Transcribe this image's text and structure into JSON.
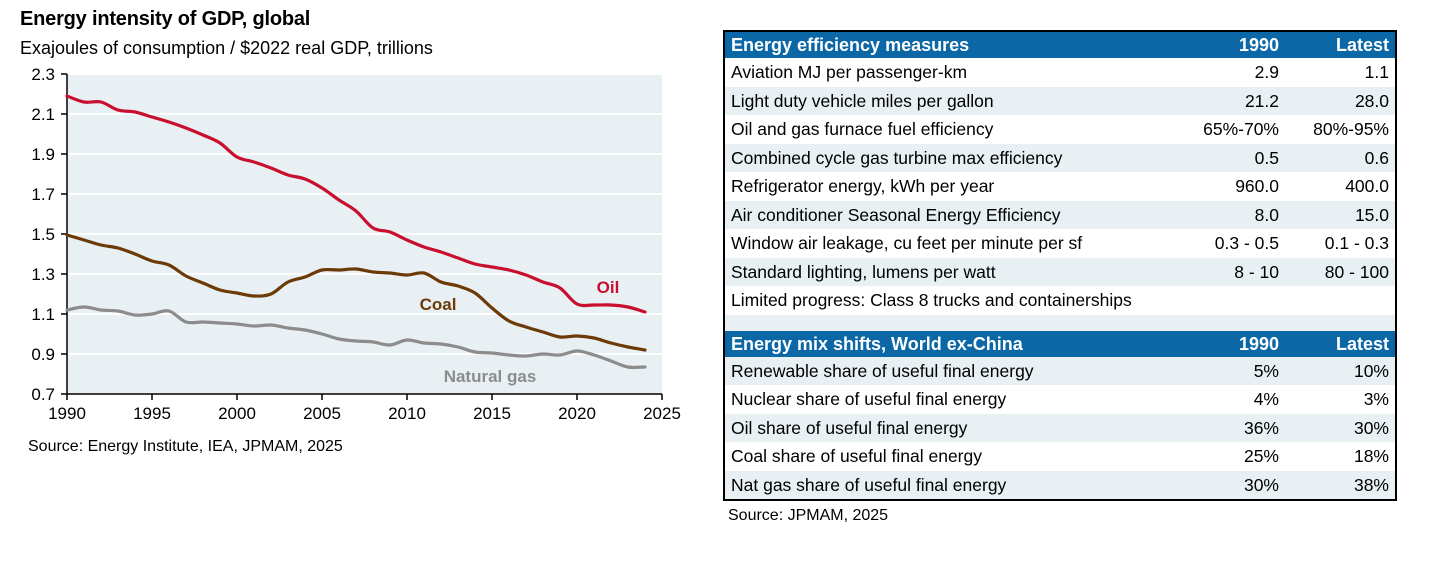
{
  "chart_data": {
    "type": "line",
    "title": "Energy intensity of GDP, global",
    "subtitle": "Exajoules of consumption / $2022 real GDP, trillions",
    "xlabel": "",
    "ylabel": "",
    "xlim": [
      1990,
      2025
    ],
    "ylim": [
      0.7,
      2.3
    ],
    "xticks": [
      1990,
      1995,
      2000,
      2005,
      2010,
      2015,
      2020,
      2025
    ],
    "yticks": [
      0.7,
      0.9,
      1.1,
      1.3,
      1.5,
      1.7,
      1.9,
      2.1,
      2.3
    ],
    "grid": true,
    "legend": "inline labels",
    "x": [
      1990,
      1991,
      1992,
      1993,
      1994,
      1995,
      1996,
      1997,
      1998,
      1999,
      2000,
      2001,
      2002,
      2003,
      2004,
      2005,
      2006,
      2007,
      2008,
      2009,
      2010,
      2011,
      2012,
      2013,
      2014,
      2015,
      2016,
      2017,
      2018,
      2019,
      2020,
      2021,
      2022,
      2023,
      2024
    ],
    "series": [
      {
        "name": "Oil",
        "color": "#c8102e",
        "label": "Oil",
        "values": [
          2.19,
          2.16,
          2.16,
          2.12,
          2.11,
          2.085,
          2.06,
          2.03,
          1.995,
          1.955,
          1.885,
          1.86,
          1.83,
          1.795,
          1.775,
          1.73,
          1.67,
          1.615,
          1.53,
          1.51,
          1.47,
          1.435,
          1.41,
          1.38,
          1.35,
          1.335,
          1.32,
          1.295,
          1.26,
          1.23,
          1.15,
          1.145,
          1.145,
          1.135,
          1.11
        ]
      },
      {
        "name": "Coal",
        "color": "#6b3a07",
        "label": "Coal",
        "values": [
          1.495,
          1.47,
          1.445,
          1.43,
          1.4,
          1.365,
          1.345,
          1.29,
          1.255,
          1.22,
          1.205,
          1.19,
          1.2,
          1.26,
          1.285,
          1.32,
          1.32,
          1.325,
          1.31,
          1.305,
          1.295,
          1.305,
          1.26,
          1.24,
          1.205,
          1.13,
          1.065,
          1.035,
          1.01,
          0.985,
          0.99,
          0.98,
          0.955,
          0.935,
          0.92
        ]
      },
      {
        "name": "Natural gas",
        "color": "#8c8c8c",
        "label": "Natural gas",
        "values": [
          1.12,
          1.135,
          1.12,
          1.115,
          1.095,
          1.1,
          1.115,
          1.06,
          1.06,
          1.055,
          1.05,
          1.04,
          1.045,
          1.03,
          1.02,
          1.0,
          0.975,
          0.965,
          0.96,
          0.945,
          0.97,
          0.955,
          0.95,
          0.935,
          0.91,
          0.905,
          0.895,
          0.89,
          0.9,
          0.895,
          0.915,
          0.895,
          0.865,
          0.835,
          0.835
        ]
      }
    ],
    "source": "Source: Energy Institute, IEA, JPMAM, 2025"
  },
  "table": {
    "sections": [
      {
        "title": "Energy efficiency measures",
        "col1": "1990",
        "col2": "Latest",
        "rows": [
          {
            "label": "Aviation MJ per passenger-km",
            "v1990": "2.9",
            "latest": "1.1"
          },
          {
            "label": "Light duty vehicle miles per gallon",
            "v1990": "21.2",
            "latest": "28.0"
          },
          {
            "label": "Oil and gas furnace fuel efficiency",
            "v1990": "65%-70%",
            "latest": "80%-95%"
          },
          {
            "label": "Combined cycle gas turbine max efficiency",
            "v1990": "0.5",
            "latest": "0.6"
          },
          {
            "label": "Refrigerator energy, kWh per year",
            "v1990": "960.0",
            "latest": "400.0"
          },
          {
            "label": "Air conditioner Seasonal Energy Efficiency",
            "v1990": "8.0",
            "latest": "15.0"
          },
          {
            "label": "Window air leakage, cu feet per minute per sf",
            "v1990": "0.3 - 0.5",
            "latest": "0.1 - 0.3"
          },
          {
            "label": "Standard lighting, lumens per watt",
            "v1990": "8 - 10",
            "latest": "80 - 100"
          },
          {
            "label": "Limited progress: Class 8 trucks and containerships",
            "v1990": "",
            "latest": ""
          }
        ]
      },
      {
        "title": "Energy mix shifts, World ex-China",
        "col1": "1990",
        "col2": "Latest",
        "rows": [
          {
            "label": "Renewable share of useful final energy",
            "v1990": "5%",
            "latest": "10%"
          },
          {
            "label": "Nuclear share of useful final energy",
            "v1990": "4%",
            "latest": "3%"
          },
          {
            "label": "Oil share of useful final energy",
            "v1990": "36%",
            "latest": "30%"
          },
          {
            "label": "Coal share of useful final energy",
            "v1990": "25%",
            "latest": "18%"
          },
          {
            "label": "Nat gas share of useful final energy",
            "v1990": "30%",
            "latest": "38%"
          }
        ]
      }
    ],
    "source": "Source: JPMAM, 2025",
    "header_color": "#0b67a5",
    "stripe_color": "#e8f0f4"
  }
}
